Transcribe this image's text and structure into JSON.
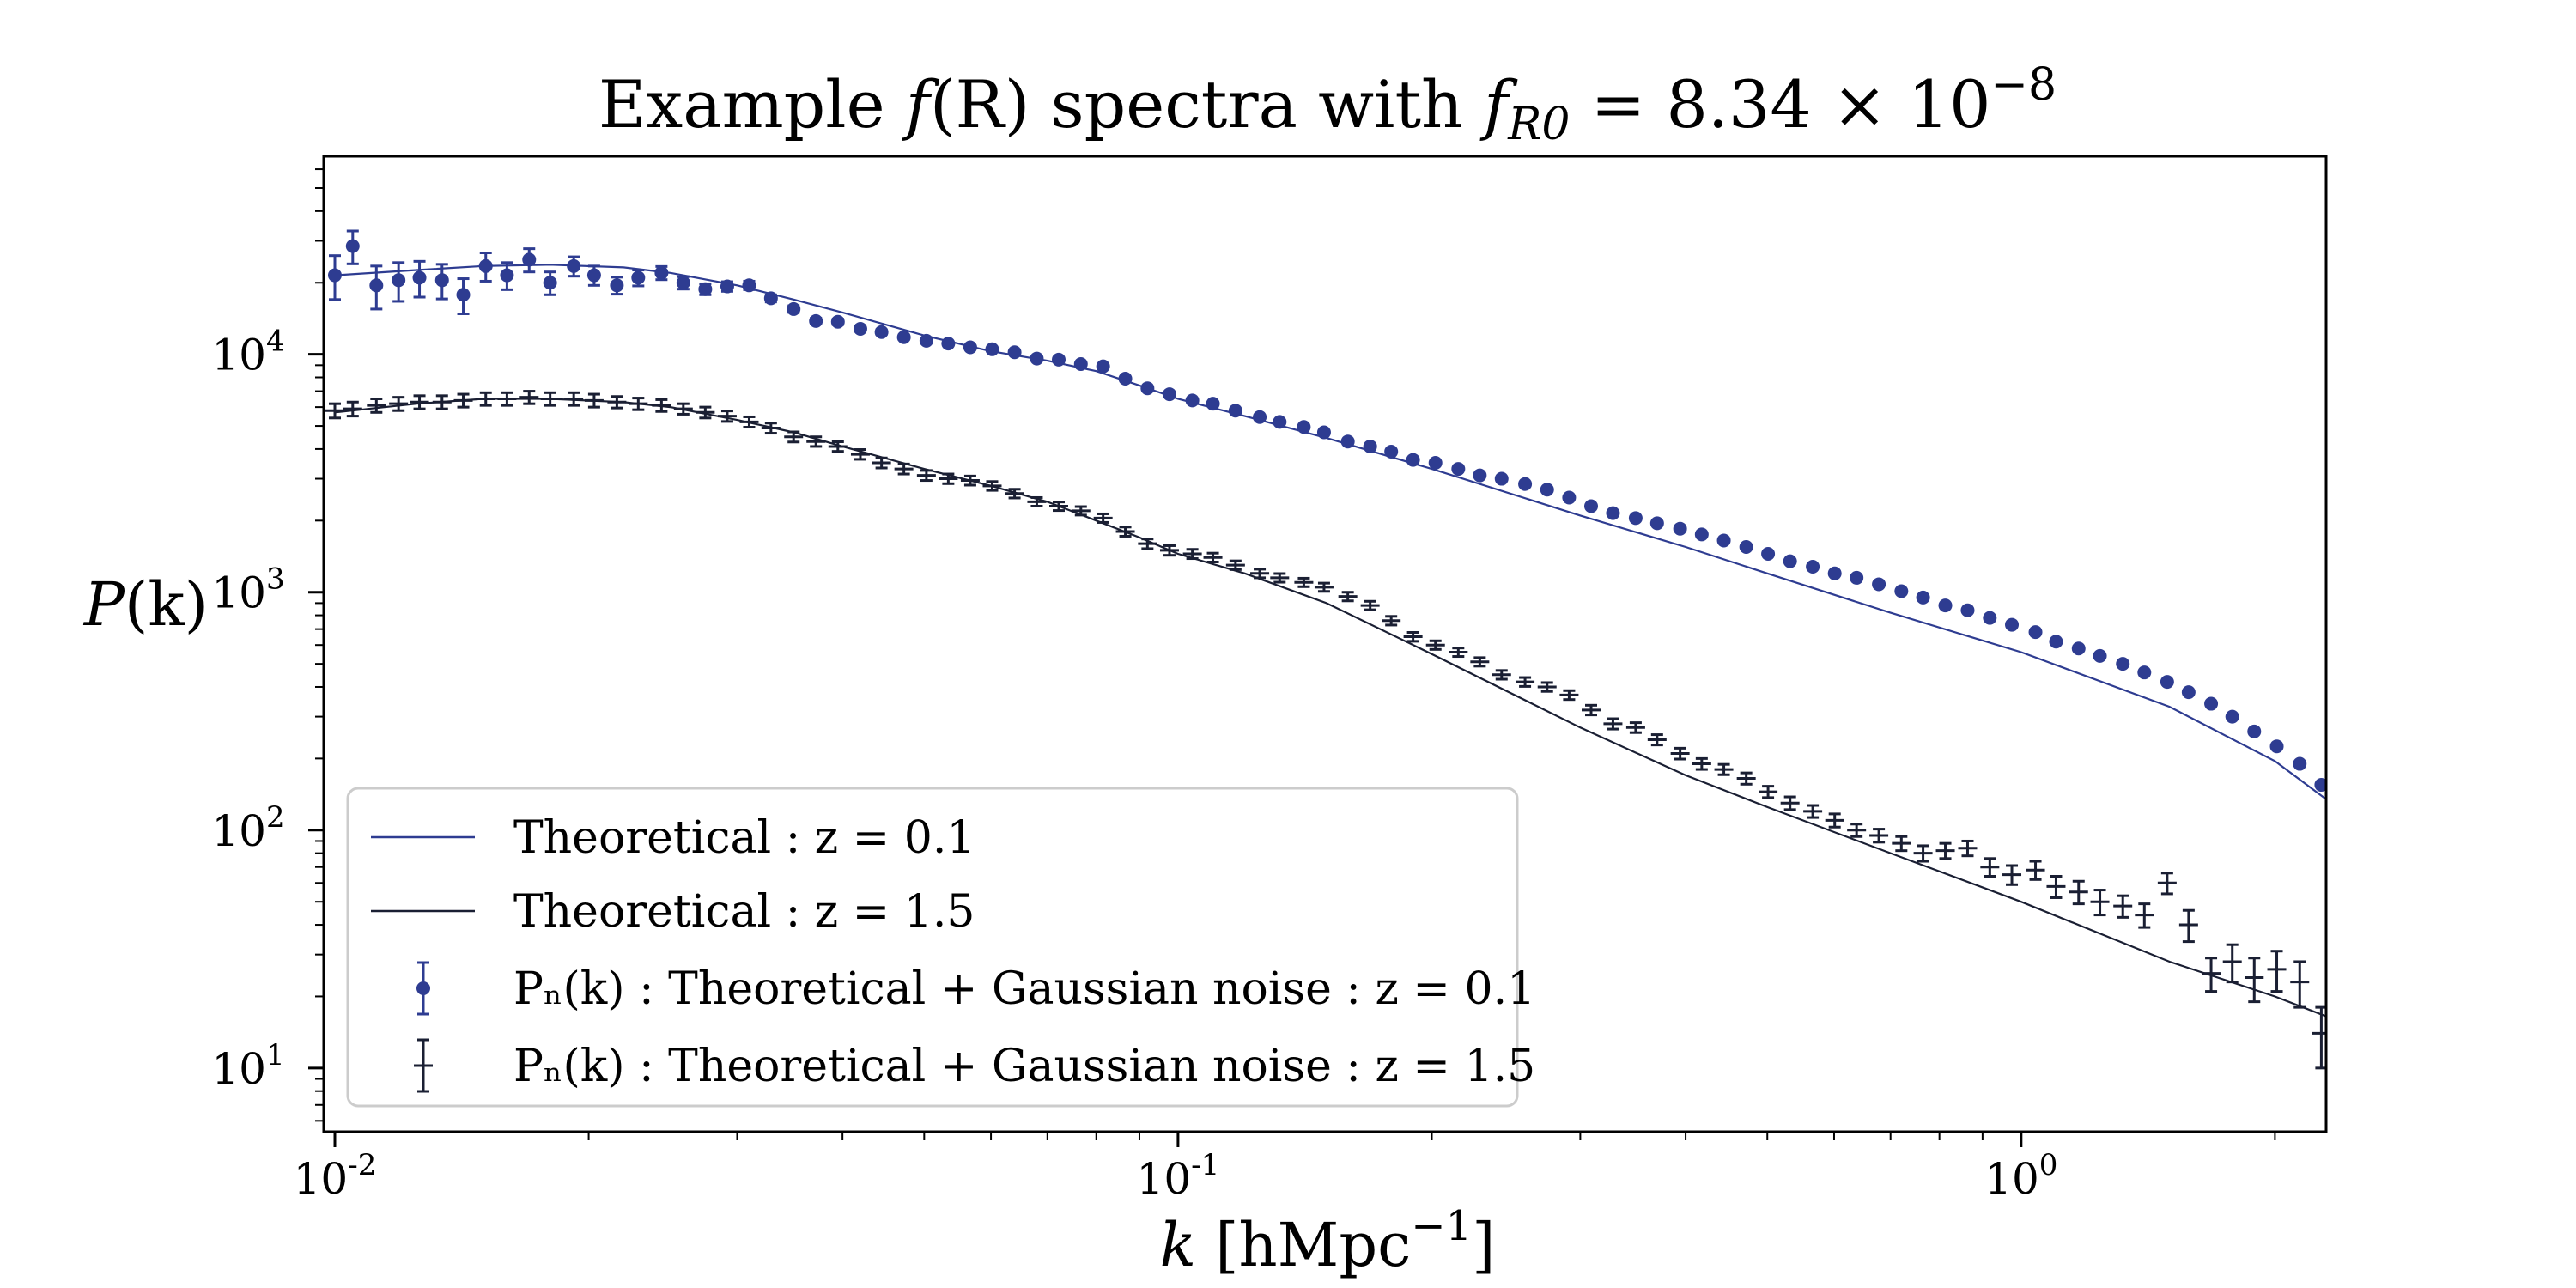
{
  "chart_data": {
    "type": "scatter",
    "title": {
      "prefix": "Example ",
      "fn": "f",
      "fn_arg": "(R)",
      "middle": " spectra with ",
      "param": "f",
      "param_sub": "R0",
      "value": " = 8.34 × 10",
      "exponent": "−8"
    },
    "xlabel": {
      "var": "k",
      "units": " [hMpc",
      "unit_exp": "−1",
      "close": "]"
    },
    "ylabel": {
      "fn": "P",
      "arg": "(k)"
    },
    "xscale": "log",
    "yscale": "log",
    "xlim": [
      0.0097,
      2.3
    ],
    "ylim": [
      5.4,
      68000
    ],
    "x_ticks": [
      {
        "value": 0.01,
        "base": "10",
        "exp": "-2"
      },
      {
        "value": 0.1,
        "base": "10",
        "exp": "-1"
      },
      {
        "value": 1,
        "base": "10",
        "exp": "0"
      }
    ],
    "y_ticks": [
      {
        "value": 10,
        "base": "10",
        "exp": "1"
      },
      {
        "value": 100,
        "base": "10",
        "exp": "2"
      },
      {
        "value": 1000,
        "base": "10",
        "exp": "3"
      },
      {
        "value": 10000,
        "base": "10",
        "exp": "4"
      }
    ],
    "legend": {
      "position": "lower-left",
      "entries": [
        {
          "kind": "line",
          "series": "theory_z01",
          "text": "Theoretical : z = 0.1"
        },
        {
          "kind": "line",
          "series": "theory_z15",
          "text": "Theoretical : z = 1.5"
        },
        {
          "kind": "dot",
          "series": "noisy_z01",
          "text": "Pₙ(k) : Theoretical + Gaussian noise : z = 0.1"
        },
        {
          "kind": "cross",
          "series": "noisy_z15",
          "text": "Pₙ(k) : Theoretical + Gaussian noise : z = 1.5"
        }
      ]
    },
    "series": [
      {
        "name": "theory_z01",
        "style": "line",
        "color": "#2e3c91",
        "k": [
          0.01,
          0.0125,
          0.015,
          0.018,
          0.022,
          0.025,
          0.03,
          0.035,
          0.04,
          0.05,
          0.06,
          0.07,
          0.08,
          0.09,
          0.1,
          0.12,
          0.15,
          0.2,
          0.3,
          0.4,
          0.5,
          0.7,
          1.0,
          1.5,
          2.0,
          2.3
        ],
        "P": [
          21500,
          22600,
          23500,
          23800,
          23200,
          22000,
          19500,
          17000,
          15000,
          12000,
          10300,
          9400,
          8500,
          7400,
          6500,
          5500,
          4450,
          3300,
          2100,
          1550,
          1200,
          820,
          560,
          330,
          195,
          135
        ]
      },
      {
        "name": "theory_z15",
        "style": "line",
        "color": "#1a1f33",
        "k": [
          0.01,
          0.0125,
          0.015,
          0.018,
          0.022,
          0.025,
          0.03,
          0.035,
          0.04,
          0.05,
          0.06,
          0.07,
          0.08,
          0.09,
          0.1,
          0.12,
          0.15,
          0.2,
          0.3,
          0.4,
          0.5,
          0.7,
          1.0,
          1.5,
          2.0,
          2.3
        ],
        "P": [
          5700,
          6200,
          6500,
          6500,
          6300,
          6000,
          5300,
          4700,
          4100,
          3300,
          2800,
          2400,
          2000,
          1700,
          1450,
          1200,
          900,
          550,
          270,
          170,
          125,
          80,
          50,
          28,
          20,
          16.5
        ]
      },
      {
        "name": "noisy_z01",
        "style": "markers",
        "marker": "dot",
        "color": "#2e3c91",
        "k": [
          0.01,
          0.0105,
          0.0112,
          0.0119,
          0.0126,
          0.0134,
          0.0142,
          0.0151,
          0.016,
          0.017,
          0.018,
          0.0192,
          0.0203,
          0.0216,
          0.0229,
          0.0244,
          0.0259,
          0.0275,
          0.0292,
          0.031,
          0.0329,
          0.035,
          0.0372,
          0.0395,
          0.042,
          0.0445,
          0.0473,
          0.0503,
          0.0534,
          0.0567,
          0.0602,
          0.064,
          0.068,
          0.0722,
          0.0767,
          0.0815,
          0.0866,
          0.092,
          0.0977,
          0.104,
          0.11,
          0.117,
          0.125,
          0.132,
          0.141,
          0.149,
          0.159,
          0.169,
          0.179,
          0.19,
          0.202,
          0.215,
          0.228,
          0.242,
          0.258,
          0.274,
          0.291,
          0.309,
          0.328,
          0.349,
          0.37,
          0.394,
          0.418,
          0.444,
          0.472,
          0.501,
          0.532,
          0.566,
          0.601,
          0.638,
          0.678,
          0.721,
          0.765,
          0.813,
          0.864,
          0.918,
          0.975,
          1.04,
          1.1,
          1.17,
          1.24,
          1.32,
          1.4,
          1.49,
          1.58,
          1.68,
          1.78,
          1.89,
          2.01,
          2.14,
          2.27
        ],
        "P": [
          21500,
          28500,
          19500,
          20500,
          21000,
          20500,
          17800,
          23500,
          21500,
          25000,
          20000,
          23500,
          21500,
          19500,
          21000,
          22000,
          20000,
          18800,
          19300,
          19500,
          17200,
          15500,
          13800,
          13700,
          12800,
          12400,
          11800,
          11400,
          11100,
          10700,
          10500,
          10200,
          9600,
          9500,
          9100,
          8900,
          7900,
          7200,
          6800,
          6400,
          6200,
          5800,
          5450,
          5200,
          4950,
          4700,
          4300,
          4100,
          3900,
          3600,
          3500,
          3300,
          3100,
          3000,
          2850,
          2700,
          2500,
          2300,
          2150,
          2050,
          1950,
          1850,
          1750,
          1650,
          1550,
          1450,
          1350,
          1280,
          1200,
          1150,
          1080,
          1010,
          950,
          880,
          840,
          780,
          730,
          680,
          620,
          580,
          540,
          500,
          460,
          420,
          380,
          340,
          300,
          260,
          225,
          190,
          155
        ],
        "err": [
          4500,
          4500,
          4000,
          3800,
          3600,
          3400,
          3000,
          3200,
          2800,
          2800,
          2200,
          2200,
          2000,
          1600,
          1600,
          1400,
          1200,
          1000,
          900,
          800,
          600,
          500,
          400,
          380,
          300,
          280,
          240,
          220,
          200,
          180,
          160,
          150,
          130,
          120,
          110,
          100,
          90,
          80,
          70,
          65,
          60,
          55,
          50,
          45,
          40,
          38,
          35,
          32,
          30,
          28,
          26,
          24,
          22,
          20,
          18,
          17,
          16,
          15,
          14,
          13,
          12,
          11,
          10,
          10,
          9,
          9,
          8,
          8,
          7,
          7,
          6,
          6,
          6,
          5,
          5,
          5,
          4,
          4,
          4,
          4,
          3,
          3,
          3,
          3,
          3,
          2,
          2,
          2,
          2,
          2,
          2
        ]
      },
      {
        "name": "noisy_z15",
        "style": "markers",
        "marker": "cross",
        "color": "#1a1f33",
        "k": [
          0.01,
          0.0105,
          0.0112,
          0.0119,
          0.0126,
          0.0134,
          0.0142,
          0.0151,
          0.016,
          0.017,
          0.018,
          0.0192,
          0.0203,
          0.0216,
          0.0229,
          0.0244,
          0.0259,
          0.0275,
          0.0292,
          0.031,
          0.0329,
          0.035,
          0.0372,
          0.0395,
          0.042,
          0.0445,
          0.0473,
          0.0503,
          0.0534,
          0.0567,
          0.0602,
          0.064,
          0.068,
          0.0722,
          0.0767,
          0.0815,
          0.0866,
          0.092,
          0.0977,
          0.104,
          0.11,
          0.117,
          0.125,
          0.132,
          0.141,
          0.149,
          0.159,
          0.169,
          0.179,
          0.19,
          0.202,
          0.215,
          0.228,
          0.242,
          0.258,
          0.274,
          0.291,
          0.309,
          0.328,
          0.349,
          0.37,
          0.394,
          0.418,
          0.444,
          0.472,
          0.501,
          0.532,
          0.566,
          0.601,
          0.638,
          0.678,
          0.721,
          0.765,
          0.813,
          0.864,
          0.918,
          0.975,
          1.04,
          1.1,
          1.17,
          1.24,
          1.32,
          1.4,
          1.49,
          1.58,
          1.68,
          1.78,
          1.89,
          2.01,
          2.14,
          2.27
        ],
        "P": [
          5800,
          5900,
          6100,
          6200,
          6300,
          6300,
          6400,
          6500,
          6500,
          6600,
          6500,
          6500,
          6400,
          6300,
          6200,
          6100,
          5900,
          5700,
          5500,
          5200,
          4900,
          4500,
          4300,
          4100,
          3800,
          3500,
          3300,
          3100,
          3000,
          2950,
          2800,
          2600,
          2400,
          2300,
          2200,
          2050,
          1800,
          1600,
          1500,
          1450,
          1400,
          1300,
          1200,
          1150,
          1100,
          1050,
          960,
          880,
          760,
          650,
          600,
          560,
          510,
          450,
          420,
          400,
          370,
          320,
          280,
          270,
          240,
          210,
          190,
          180,
          165,
          145,
          130,
          120,
          110,
          100,
          95,
          88,
          80,
          82,
          84,
          70,
          65,
          68,
          58,
          55,
          50,
          48,
          44,
          60,
          40,
          25,
          28,
          24,
          26,
          23,
          14
        ],
        "err": [
          400,
          400,
          400,
          400,
          400,
          400,
          400,
          400,
          400,
          400,
          400,
          400,
          400,
          350,
          350,
          350,
          300,
          300,
          280,
          260,
          240,
          220,
          200,
          190,
          180,
          170,
          160,
          150,
          140,
          130,
          120,
          110,
          100,
          95,
          90,
          85,
          80,
          75,
          70,
          65,
          60,
          55,
          50,
          48,
          45,
          42,
          40,
          36,
          32,
          28,
          25,
          23,
          21,
          19,
          18,
          17,
          16,
          15,
          14,
          13,
          12,
          11,
          10,
          9,
          9,
          8,
          8,
          7,
          7,
          6,
          6,
          6,
          6,
          6,
          6,
          6,
          6,
          6,
          6,
          6,
          6,
          5,
          5,
          6,
          6,
          4,
          5,
          5,
          5,
          5,
          4
        ]
      }
    ]
  }
}
